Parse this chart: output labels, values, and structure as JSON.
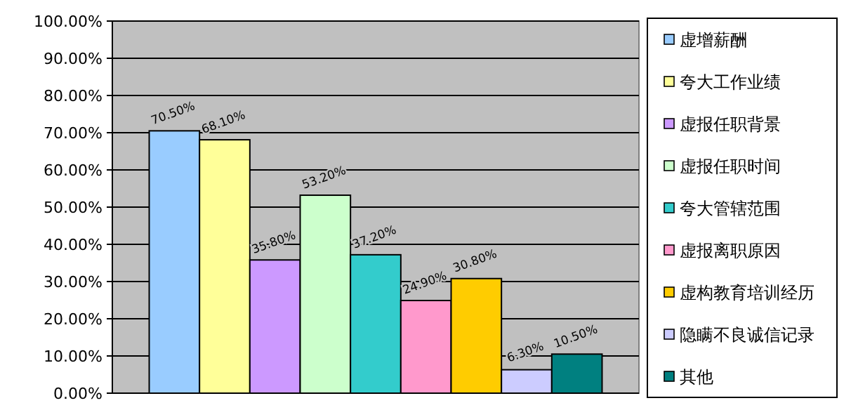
{
  "chart_data": {
    "type": "bar",
    "categories": [
      null
    ],
    "series": [
      {
        "name": "虚增薪酬",
        "color": "#99ccff",
        "values": [
          70.5
        ],
        "value_labels": [
          "70.50%"
        ]
      },
      {
        "name": "夸大工作业绩",
        "color": "#ffff99",
        "values": [
          68.1
        ],
        "value_labels": [
          "68.10%"
        ]
      },
      {
        "name": "虚报任职背景",
        "color": "#cc99ff",
        "values": [
          35.8
        ],
        "value_labels": [
          "35.80%"
        ]
      },
      {
        "name": "虚报任职时间",
        "color": "#ccffcc",
        "values": [
          53.2
        ],
        "value_labels": [
          "53.20%"
        ]
      },
      {
        "name": "夸大管辖范围",
        "color": "#33cccc",
        "values": [
          37.2
        ],
        "value_labels": [
          "37.20%"
        ]
      },
      {
        "name": "虚报离职原因",
        "color": "#ff99cc",
        "values": [
          24.9
        ],
        "value_labels": [
          "24.90%"
        ]
      },
      {
        "name": "虚构教育培训经历",
        "color": "#ffcc00",
        "values": [
          30.8
        ],
        "value_labels": [
          "30.80%"
        ]
      },
      {
        "name": "隐瞒不良诚信记录",
        "color": "#ccccff",
        "values": [
          6.3
        ],
        "value_labels": [
          "6.30%"
        ]
      },
      {
        "name": "其他",
        "color": "#008080",
        "values": [
          10.5
        ],
        "value_labels": [
          "10.50%"
        ]
      }
    ],
    "ylim": [
      0,
      100
    ],
    "yticks": [
      {
        "value": 0,
        "label": "0.00%"
      },
      {
        "value": 10,
        "label": "10.00%"
      },
      {
        "value": 20,
        "label": "20.00%"
      },
      {
        "value": 30,
        "label": "30.00%"
      },
      {
        "value": 40,
        "label": "40.00%"
      },
      {
        "value": 50,
        "label": "50.00%"
      },
      {
        "value": 60,
        "label": "60.00%"
      },
      {
        "value": 70,
        "label": "70.00%"
      },
      {
        "value": 80,
        "label": "80.00%"
      },
      {
        "value": 90,
        "label": "90.00%"
      },
      {
        "value": 100,
        "label": "100.00%"
      }
    ],
    "grid": "y",
    "legend": "right"
  }
}
